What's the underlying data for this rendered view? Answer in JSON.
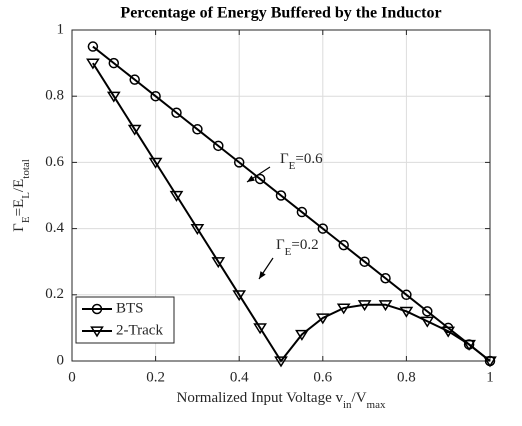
{
  "chart_data": {
    "type": "line",
    "title": "Percentage of Energy Buffered by the Inductor",
    "xlabel": [
      "Normalized Input Voltage v",
      "in",
      "/V",
      "max"
    ],
    "ylabel": [
      "Γ",
      "E",
      "=E",
      "L",
      "/E",
      "total"
    ],
    "x": [
      0.05,
      0.1,
      0.15,
      0.2,
      0.25,
      0.3,
      0.35,
      0.4,
      0.45,
      0.5,
      0.55,
      0.6,
      0.65,
      0.7,
      0.75,
      0.8,
      0.85,
      0.9,
      0.95,
      1.0
    ],
    "series": [
      {
        "name": "BTS",
        "color": "#000000",
        "marker": "circle",
        "values": [
          0.95,
          0.9,
          0.85,
          0.8,
          0.75,
          0.7,
          0.65,
          0.6,
          0.55,
          0.5,
          0.45,
          0.4,
          0.35,
          0.3,
          0.25,
          0.2,
          0.15,
          0.1,
          0.05,
          0
        ]
      },
      {
        "name": "2-Track",
        "color": "#000000",
        "marker": "triangle-down",
        "values": [
          0.9,
          0.8,
          0.7,
          0.6,
          0.5,
          0.4,
          0.3,
          0.2,
          0.1,
          0,
          0.08,
          0.13,
          0.16,
          0.17,
          0.17,
          0.15,
          0.12,
          0.09,
          0.05,
          0
        ]
      }
    ],
    "annotations": [
      [
        "Γ",
        "E",
        "=0.6"
      ],
      [
        "Γ",
        "E",
        "=0.2"
      ]
    ],
    "xlim": [
      0,
      1
    ],
    "xticks": [
      0,
      0.2,
      0.4,
      0.6,
      0.8,
      1
    ],
    "ylim": [
      0,
      1
    ],
    "yticks": [
      0,
      0.2,
      0.4,
      0.6,
      0.8,
      1
    ],
    "grid": true,
    "legend": "lower left"
  }
}
